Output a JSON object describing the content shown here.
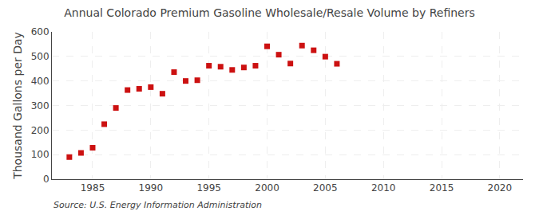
{
  "chart_data": {
    "type": "scatter",
    "title": "Annual Colorado Premium Gasoline Wholesale/Resale Volume by Refiners",
    "ylabel": "Thousand Gallons per Day",
    "annotations": [
      "Source: U.S. Energy Information Administration"
    ],
    "x": [
      1983,
      1984,
      1985,
      1986,
      1987,
      1988,
      1989,
      1990,
      1991,
      1992,
      1993,
      1994,
      1995,
      1996,
      1997,
      1998,
      1999,
      2000,
      2001,
      2002,
      2003,
      2004,
      2005,
      2006
    ],
    "values": [
      90,
      107,
      128,
      224,
      290,
      363,
      368,
      375,
      348,
      436,
      400,
      403,
      462,
      458,
      445,
      455,
      462,
      541,
      507,
      471,
      544,
      525,
      499,
      470
    ],
    "color": "#cc1111",
    "marker": "square",
    "xlim": [
      1981.5,
      2022
    ],
    "xticks": [
      1985,
      1990,
      1995,
      2000,
      2005,
      2010,
      2015,
      2020
    ],
    "ylim": [
      0,
      600
    ],
    "yticks": [
      0,
      100,
      200,
      300,
      400,
      500,
      600
    ],
    "grid": true
  }
}
